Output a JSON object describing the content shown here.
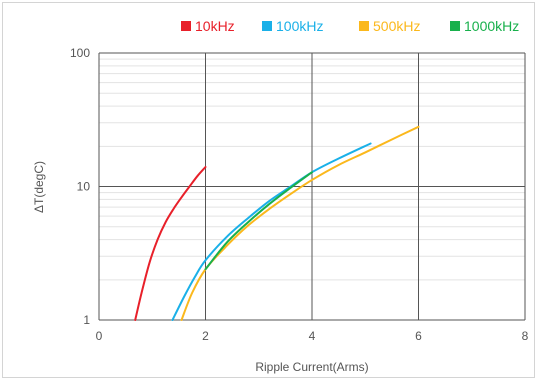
{
  "chart_data": {
    "type": "line",
    "xlabel": "Ripple Current(Arms)",
    "ylabel": "ΔT(degC)",
    "xlim": [
      0,
      8
    ],
    "ylim": [
      1,
      100
    ],
    "yscale": "log",
    "x_ticks": [
      "0",
      "2",
      "4",
      "6",
      "8"
    ],
    "y_ticks": [
      "1",
      "10",
      "100"
    ],
    "grid": true,
    "legend_position": "top-right",
    "series": [
      {
        "name": "10kHz",
        "color": "#e8202a",
        "x": [
          0.68,
          0.8,
          0.95,
          1.1,
          1.25,
          1.4,
          1.55,
          1.7,
          1.85,
          2.0
        ],
        "y": [
          1.0,
          1.6,
          2.7,
          4.0,
          5.4,
          6.8,
          8.3,
          10.0,
          12.0,
          14.0
        ]
      },
      {
        "name": "100kHz",
        "color": "#1ab0e8",
        "x": [
          1.38,
          1.6,
          1.8,
          2.0,
          2.4,
          2.8,
          3.2,
          3.6,
          4.0,
          4.5,
          5.1
        ],
        "y": [
          1.0,
          1.5,
          2.1,
          2.8,
          4.2,
          5.8,
          7.8,
          10.0,
          12.8,
          16.2,
          21.0
        ]
      },
      {
        "name": "500kHz",
        "color": "#fbb81c",
        "x": [
          1.55,
          1.75,
          2.0,
          2.4,
          2.8,
          3.2,
          3.6,
          4.0,
          4.5,
          5.0,
          5.5,
          6.0
        ],
        "y": [
          1.0,
          1.6,
          2.4,
          3.6,
          5.1,
          6.8,
          8.8,
          11.2,
          14.5,
          18.0,
          22.5,
          28.0
        ]
      },
      {
        "name": "1000kHz",
        "color": "#18b04c",
        "x": [
          2.0,
          2.4,
          2.8,
          3.2,
          3.6,
          4.0
        ],
        "y": [
          2.4,
          3.8,
          5.4,
          7.4,
          9.8,
          12.8
        ]
      }
    ]
  }
}
